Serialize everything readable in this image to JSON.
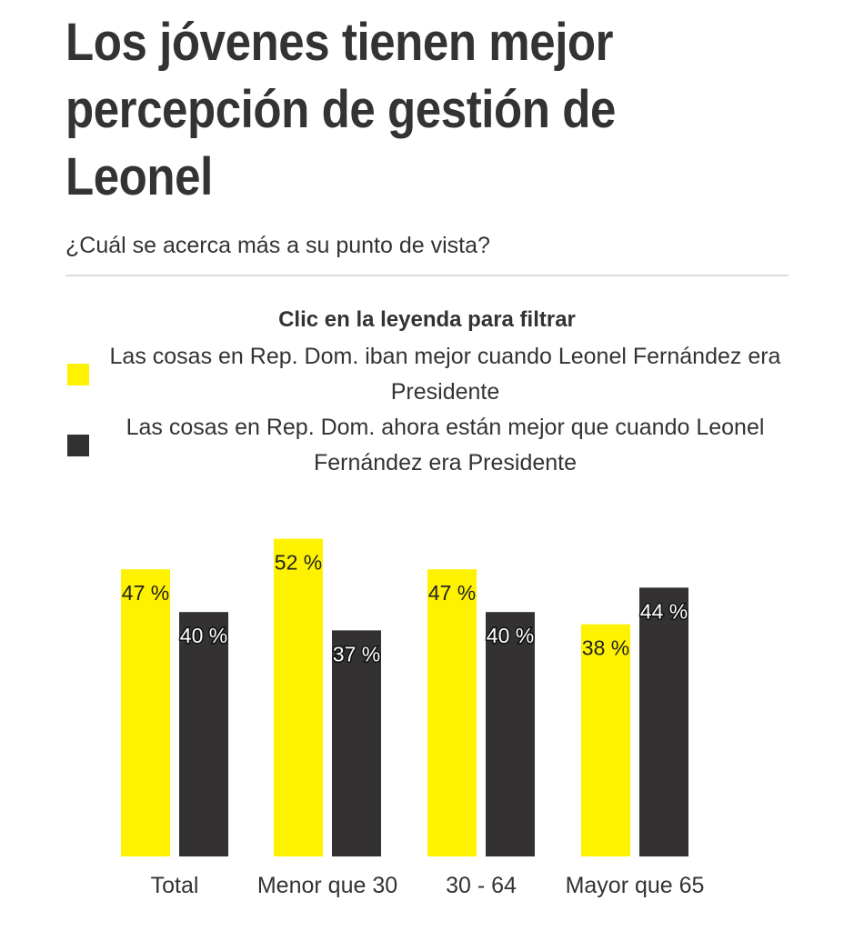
{
  "chart_data": {
    "type": "bar",
    "title": "Los jóvenes tienen mejor percepción de gestión de Leonel",
    "subtitle": "¿Cuál se acerca más a su punto de vista?",
    "legend_heading": "Clic en la leyenda para filtrar",
    "categories": [
      "Total",
      "Menor que 30",
      "30 - 64",
      "Mayor que 65"
    ],
    "series": [
      {
        "name": "Las cosas en Rep. Dom. iban mejor cuando Leonel Fernández era Presidente",
        "color": "#fff200",
        "values": [
          47,
          52,
          47,
          38
        ],
        "labels": [
          "47 %",
          "52 %",
          "47 %",
          "38 %"
        ]
      },
      {
        "name": "Las cosas en Rep. Dom. ahora están mejor que cuando Leonel Fernández era Presidente",
        "color": "#333132",
        "values": [
          40,
          37,
          40,
          44
        ],
        "labels": [
          "40 %",
          "37 %",
          "40 %",
          "44 %"
        ]
      }
    ],
    "ylim": [
      0,
      60
    ],
    "grid": false,
    "legend_position": "top"
  }
}
